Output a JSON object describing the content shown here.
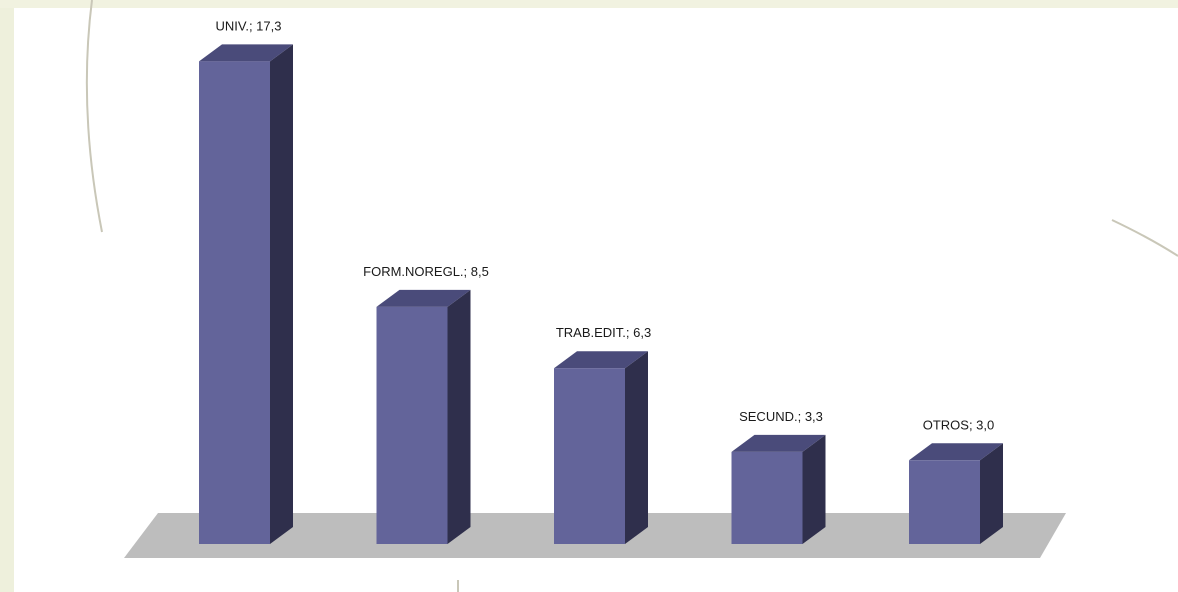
{
  "chart_data": {
    "type": "bar",
    "style": "3d-column",
    "categories": [
      "UNIV.",
      "FORM.NOREGL.",
      "TRAB.EDIT.",
      "SECUND.",
      "OTROS"
    ],
    "values": [
      17.3,
      8.5,
      6.3,
      3.3,
      3.0
    ],
    "data_labels": [
      "UNIV.; 17,3",
      "FORM.NOREGL.; 8,5",
      "TRAB.EDIT.; 6,3",
      "SECUND.; 3,3",
      "OTROS; 3,0"
    ],
    "title": "",
    "xlabel": "",
    "ylabel": "",
    "ylim": [
      0,
      18
    ],
    "grid": false,
    "legend": "none",
    "colors": {
      "bar_front": "#63649a",
      "bar_side": "#2f2f4c",
      "bar_top": "#4a4b7a",
      "floor": "#bdbdbd",
      "background": "#ffffff",
      "frame": "#eef0dc"
    }
  }
}
